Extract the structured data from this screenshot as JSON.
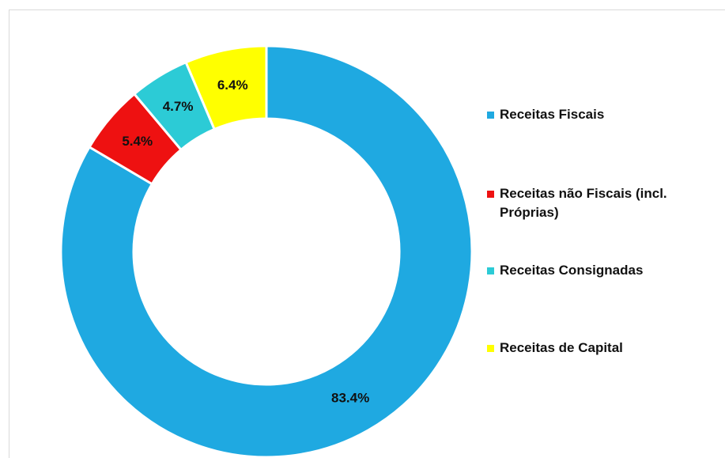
{
  "chart_data": {
    "type": "donut",
    "categories": [
      "Receitas Fiscais",
      "Receitas não Fiscais (incl. Próprias)",
      "Receitas Consignadas",
      "Receitas de Capital"
    ],
    "values": [
      83.4,
      5.4,
      4.7,
      6.4
    ],
    "value_labels": [
      "83.4%",
      "5.4%",
      "4.7%",
      "6.4%"
    ],
    "colors": [
      "#1fa9e1",
      "#ee1111",
      "#2ccbd6",
      "#ffff00"
    ],
    "legend": "right"
  }
}
